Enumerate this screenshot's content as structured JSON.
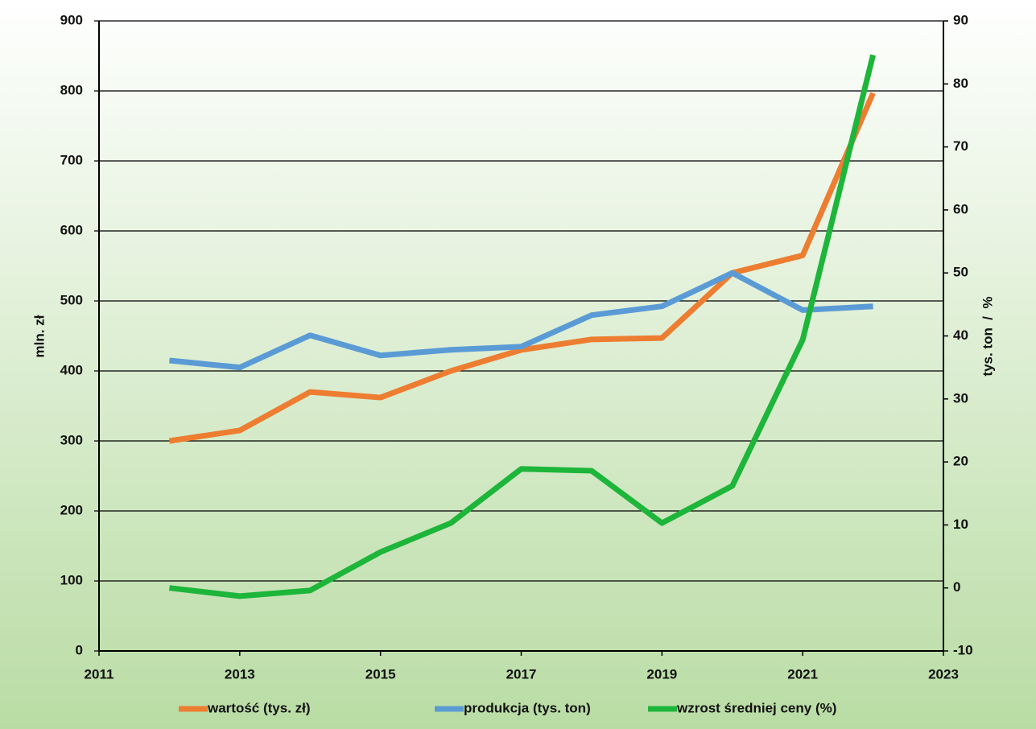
{
  "chart_data": {
    "type": "line",
    "x": [
      2012,
      2013,
      2014,
      2015,
      2016,
      2017,
      2018,
      2019,
      2020,
      2021,
      2022
    ],
    "xlim": [
      2011,
      2023
    ],
    "xticks": [
      2011,
      2013,
      2015,
      2017,
      2019,
      2021,
      2023
    ],
    "ylim": [
      0,
      900
    ],
    "yticks": [
      0,
      100,
      200,
      300,
      400,
      500,
      600,
      700,
      800,
      900
    ],
    "y2lim": [
      -10,
      90
    ],
    "y2ticks": [
      -10,
      0,
      10,
      20,
      30,
      40,
      50,
      60,
      70,
      80,
      90
    ],
    "ylabel": "mln. zł",
    "y2label": "tys. ton  /  %",
    "grid": true,
    "legend": "bottom",
    "series": [
      {
        "name": "wartość (tys. zł)",
        "color": "#ed7d31",
        "values": [
          300,
          315,
          370,
          362,
          400,
          430,
          445,
          447,
          540,
          565,
          797
        ]
      },
      {
        "name": "produkcja (tys. ton)",
        "color": "#5b9bd5",
        "axis": "y2",
        "values": [
          36.1,
          35,
          40.1,
          36.9,
          37.8,
          38.3,
          43.3,
          44.7,
          50,
          44.1,
          44.7
        ]
      },
      {
        "name": "wzrost średniej ceny (%)",
        "color": "#1db53a",
        "axis": "y2",
        "values": [
          0,
          -1.3,
          -0.4,
          5.7,
          10.3,
          18.9,
          18.6,
          10.3,
          16.2,
          39.4,
          84.6
        ]
      }
    ]
  }
}
